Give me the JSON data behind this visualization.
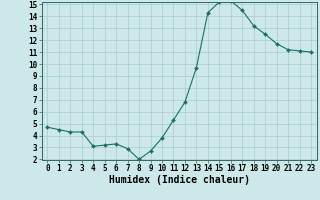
{
  "title": "",
  "xlabel": "Humidex (Indice chaleur)",
  "ylabel": "",
  "x_values": [
    0,
    1,
    2,
    3,
    4,
    5,
    6,
    7,
    8,
    9,
    10,
    11,
    12,
    13,
    14,
    15,
    16,
    17,
    18,
    19,
    20,
    21,
    22,
    23
  ],
  "y_values": [
    4.7,
    4.5,
    4.3,
    4.3,
    3.1,
    3.2,
    3.3,
    2.9,
    2.0,
    2.7,
    3.8,
    5.3,
    6.8,
    9.7,
    14.3,
    15.2,
    15.3,
    14.5,
    13.2,
    12.5,
    11.7,
    11.2,
    11.1,
    11.0
  ],
  "ylim": [
    2,
    15
  ],
  "xlim": [
    -0.5,
    23.5
  ],
  "line_color": "#1a7068",
  "marker_color": "#1a7068",
  "bg_color": "#cce8e8",
  "grid_color": "#aacccc",
  "axis_color": "#336666",
  "yticks": [
    2,
    3,
    4,
    5,
    6,
    7,
    8,
    9,
    10,
    11,
    12,
    13,
    14,
    15
  ],
  "xticks": [
    0,
    1,
    2,
    3,
    4,
    5,
    6,
    7,
    8,
    9,
    10,
    11,
    12,
    13,
    14,
    15,
    16,
    17,
    18,
    19,
    20,
    21,
    22,
    23
  ],
  "tick_fontsize": 5.5,
  "xlabel_fontsize": 7.0
}
